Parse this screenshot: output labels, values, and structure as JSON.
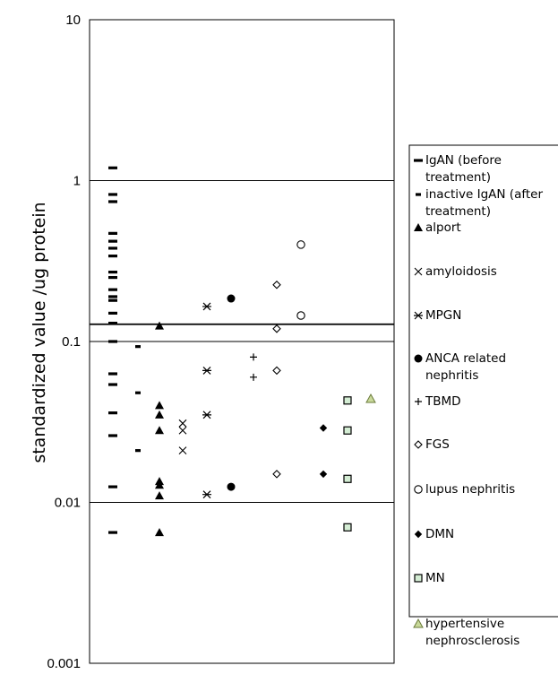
{
  "chart_data": {
    "type": "scatter",
    "title": "",
    "xlabel": "",
    "ylabel": "standardized value /ug  protein",
    "yscale": "log",
    "ylim": [
      0.001,
      10
    ],
    "yticks": [
      {
        "value": 10,
        "label": "10"
      },
      {
        "value": 1,
        "label": "1"
      },
      {
        "value": 0.1,
        "label": "0.1"
      },
      {
        "value": 0.01,
        "label": "0.01"
      },
      {
        "value": 0.001,
        "label": "0.001"
      }
    ],
    "gridlines": [
      1,
      0.1,
      0.01
    ],
    "reference_line": 0.128,
    "legend_position": "right",
    "series": [
      {
        "name": "IgAN (before treatment)",
        "legend_lines": [
          "IgAN (before",
          "treatment)"
        ],
        "marker": "dash-long",
        "fill": "#000000",
        "x": 1,
        "values": [
          1.2,
          0.82,
          0.74,
          0.47,
          0.42,
          0.38,
          0.34,
          0.27,
          0.25,
          0.21,
          0.19,
          0.18,
          0.15,
          0.13,
          0.1,
          0.063,
          0.054,
          0.036,
          0.026,
          0.0125,
          0.0065
        ]
      },
      {
        "name": "inactive IgAN (after treatment)",
        "legend_lines": [
          "inactive IgAN (after",
          "treatment)"
        ],
        "marker": "dash-short",
        "fill": "#000000",
        "x": 1.6,
        "values": [
          0.093,
          0.048,
          0.021
        ]
      },
      {
        "name": "alport",
        "legend_lines": [
          "alport"
        ],
        "marker": "triangle-filled",
        "fill": "#000000",
        "x": 2,
        "values": [
          0.125,
          0.04,
          0.035,
          0.028,
          0.0135,
          0.0128,
          0.011,
          0.0065
        ]
      },
      {
        "name": "amyloidosis",
        "legend_lines": [
          "amyloidosis"
        ],
        "marker": "x",
        "fill": "#000000",
        "x": 3,
        "values": [
          0.031,
          0.028,
          0.021
        ]
      },
      {
        "name": "MPGN",
        "legend_lines": [
          "MPGN"
        ],
        "marker": "star",
        "fill": "#000000",
        "x": 4,
        "values": [
          0.165,
          0.066,
          0.035,
          0.0112
        ]
      },
      {
        "name": "ANCA related nephritis",
        "legend_lines": [
          "ANCA related",
          "nephritis"
        ],
        "marker": "circle-filled",
        "fill": "#000000",
        "x": 5,
        "values": [
          0.185,
          0.0125
        ]
      },
      {
        "name": "TBMD",
        "legend_lines": [
          "TBMD"
        ],
        "marker": "plus",
        "fill": "#000000",
        "x": 6,
        "values": [
          0.08,
          0.06
        ]
      },
      {
        "name": "FGS",
        "legend_lines": [
          "FGS"
        ],
        "marker": "diamond-open",
        "fill": "#ffffff",
        "x": 7,
        "values": [
          0.225,
          0.12,
          0.066,
          0.015
        ]
      },
      {
        "name": "lupus nephritis",
        "legend_lines": [
          "lupus nephritis"
        ],
        "marker": "circle-open",
        "fill": "#ffffff",
        "x": 8,
        "values": [
          0.4,
          0.145
        ]
      },
      {
        "name": "DMN",
        "legend_lines": [
          "DMN"
        ],
        "marker": "diamond-filled",
        "fill": "#000000",
        "x": 9,
        "values": [
          0.029,
          0.015
        ]
      },
      {
        "name": "MN",
        "legend_lines": [
          "MN"
        ],
        "marker": "square-green",
        "fill": "#d4edd4",
        "x": 10,
        "values": [
          0.043,
          0.028,
          0.014,
          0.007
        ]
      },
      {
        "name": "hypertensive nephrosclerosis",
        "legend_lines": [
          "hypertensive",
          "nephrosclerosis"
        ],
        "marker": "triangle-green",
        "fill": "#c9d99a",
        "x": 11,
        "values": [
          0.044
        ]
      }
    ]
  }
}
